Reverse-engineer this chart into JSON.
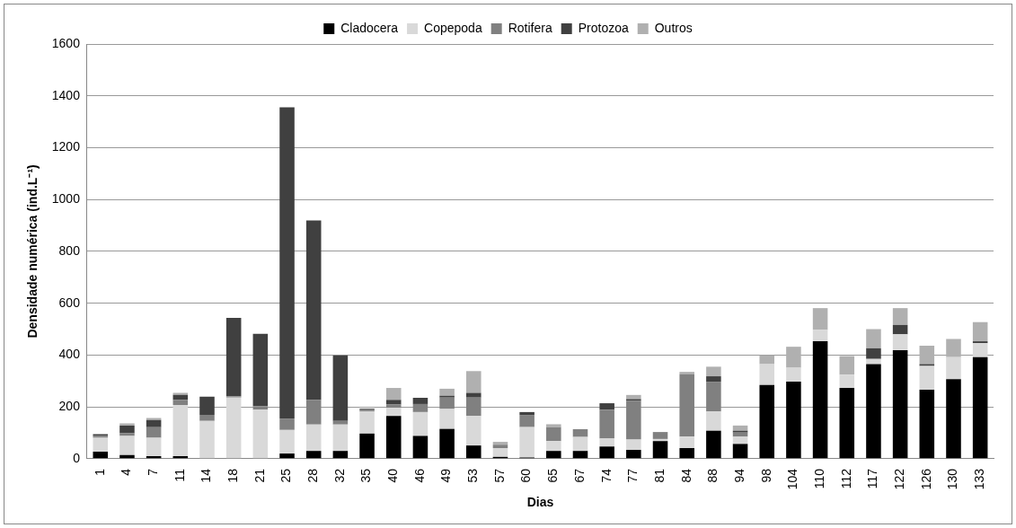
{
  "chart_data": {
    "type": "bar",
    "stacked": true,
    "xlabel": "Dias",
    "ylabel": "Densidade numérica (ind.L⁻¹)",
    "categories": [
      "1",
      "4",
      "7",
      "11",
      "14",
      "18",
      "21",
      "25",
      "28",
      "32",
      "35",
      "40",
      "46",
      "49",
      "53",
      "57",
      "60",
      "65",
      "67",
      "74",
      "77",
      "81",
      "84",
      "88",
      "94",
      "98",
      "104",
      "110",
      "112",
      "117",
      "122",
      "126",
      "130",
      "133"
    ],
    "series": [
      {
        "name": "Cladocera",
        "color": "#000000",
        "values": [
          27,
          14,
          10,
          10,
          0,
          0,
          0,
          20,
          30,
          30,
          97,
          165,
          88,
          115,
          51,
          7,
          5,
          30,
          30,
          47,
          34,
          68,
          41,
          108,
          57,
          284,
          297,
          453,
          273,
          365,
          419,
          266,
          307,
          392
        ]
      },
      {
        "name": "Copepoda",
        "color": "#d9d9d9",
        "values": [
          54,
          74,
          71,
          197,
          146,
          236,
          189,
          91,
          102,
          102,
          85,
          31,
          92,
          77,
          114,
          34,
          117,
          38,
          54,
          31,
          40,
          8,
          44,
          74,
          28,
          81,
          54,
          44,
          51,
          20,
          61,
          92,
          85,
          54
        ]
      },
      {
        "name": "Rotifera",
        "color": "#808080",
        "values": [
          7,
          10,
          41,
          20,
          23,
          5,
          14,
          44,
          94,
          14,
          7,
          13,
          31,
          44,
          71,
          13,
          47,
          54,
          30,
          111,
          149,
          27,
          242,
          115,
          16,
          0,
          0,
          0,
          0,
          0,
          0,
          0,
          0,
          0
        ]
      },
      {
        "name": "Protozoa",
        "color": "#404040",
        "values": [
          7,
          30,
          27,
          19,
          70,
          302,
          279,
          1201,
          693,
          253,
          4,
          18,
          24,
          7,
          18,
          0,
          11,
          0,
          0,
          25,
          7,
          0,
          0,
          21,
          7,
          0,
          0,
          0,
          0,
          41,
          36,
          7,
          0,
          7
        ]
      },
      {
        "name": "Outros",
        "color": "#b0b0b0",
        "values": [
          0,
          8,
          8,
          8,
          0,
          0,
          0,
          0,
          0,
          0,
          0,
          46,
          0,
          27,
          84,
          11,
          0,
          11,
          0,
          0,
          16,
          0,
          8,
          37,
          20,
          34,
          81,
          84,
          72,
          74,
          65,
          71,
          70,
          74
        ]
      }
    ],
    "ylim": [
      0,
      1600
    ],
    "yticks": [
      0,
      200,
      400,
      600,
      800,
      1000,
      1200,
      1400,
      1600
    ],
    "grid": "y",
    "legend": "top"
  }
}
